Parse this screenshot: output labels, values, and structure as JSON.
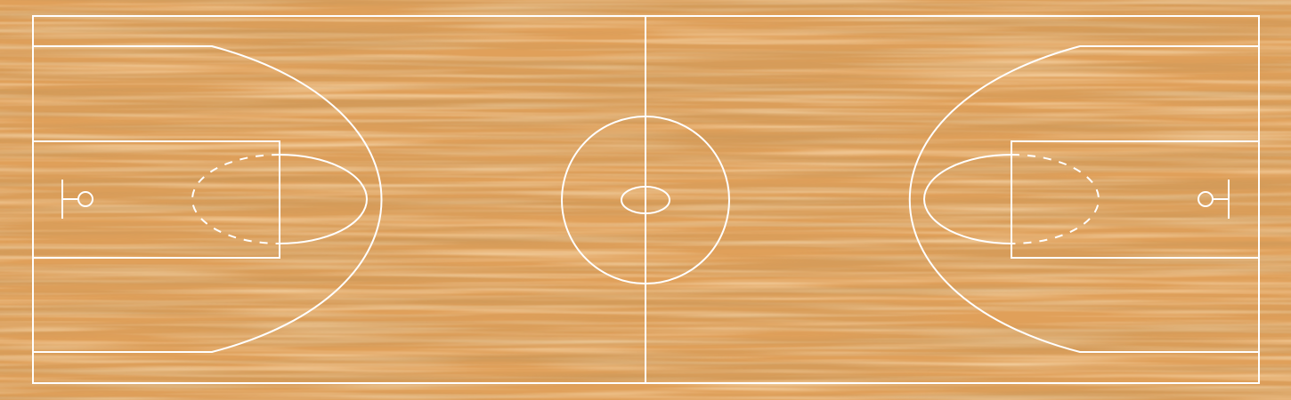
{
  "scene": {
    "subject": "basketball-court",
    "view": "top-down",
    "surface": "hardwood",
    "colors": {
      "wood_base": "#e0a05a",
      "wood_light": "#f0bf7e",
      "wood_dark": "#c27d3c",
      "wood_deep": "#a9642b",
      "lines": "#ffffff"
    }
  }
}
